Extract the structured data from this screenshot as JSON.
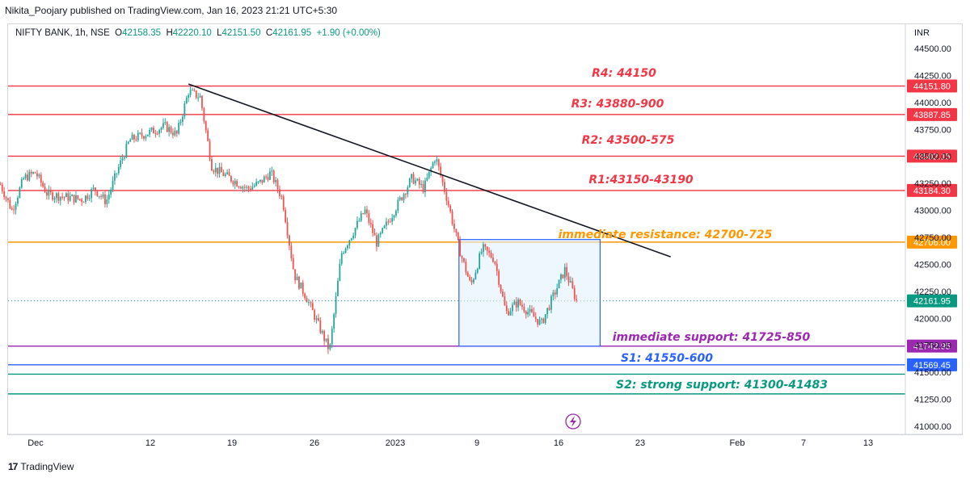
{
  "caption": "Nikita_Poojary published on TradingView.com, Jan 16, 2023 21:21 UTC+5:30",
  "symbol": {
    "name": "NIFTY BANK, 1h, NSE",
    "open_label": "O",
    "open": "42158.35",
    "high_label": "H",
    "high": "42220.10",
    "low_label": "L",
    "low": "42151.50",
    "close_label": "C",
    "close": "42161.95",
    "change": "+1.90 (+0.00%)"
  },
  "currency": "INR",
  "footer": {
    "brand": "TradingView",
    "logo_glyph": "17"
  },
  "colors": {
    "up": "#26a69a",
    "down": "#ef5350",
    "resistance": "#f23645",
    "immediate_resistance": "#ff9800",
    "immediate_support": "#9c27b0",
    "s1": "#2962ff",
    "s2": "#089981",
    "trendline": "#131722",
    "box_fill": "#e3f2fd",
    "box_border": "#2962ff",
    "current_price": "#089981"
  },
  "chart_data": {
    "type": "candlestick",
    "ylim": [
      40900,
      44700
    ],
    "y_ticks": [
      "44500.00",
      "44250.00",
      "44000.00",
      "43750.00",
      "43500.00",
      "43250.00",
      "43000.00",
      "42750.00",
      "42500.00",
      "42250.00",
      "42000.00",
      "41750.00",
      "41500.00",
      "41250.00",
      "41000.00"
    ],
    "x_ticks": [
      "Dec",
      "12",
      "19",
      "26",
      "2023",
      "9",
      "16",
      "23",
      "Feb",
      "7",
      "13"
    ],
    "levels": [
      {
        "label": "R4: 44150",
        "price": 44151.8,
        "tag": "44151.80",
        "color": "#f23645"
      },
      {
        "label": "R3: 43880-900",
        "price": 43887.85,
        "tag": "43887.85",
        "color": "#f23645"
      },
      {
        "label": "R2: 43500-575",
        "price": 43502.15,
        "tag": "43502.15",
        "color": "#f23645"
      },
      {
        "label": "R1:43150-43190",
        "price": 43184.3,
        "tag": "43184.30",
        "color": "#f23645"
      },
      {
        "label": "immediate resistance: 42700-725",
        "price": 42706.0,
        "tag": "42706.00",
        "color": "#ff9800"
      },
      {
        "label": "immediate support: 41725-850",
        "price": 41742.95,
        "tag": "41742.95",
        "color": "#9c27b0"
      },
      {
        "label": "S1: 41550-600",
        "price": 41569.45,
        "tag": "41569.45",
        "color": "#2962ff"
      },
      {
        "label": "S2: strong support: 41300-41483",
        "price": 41483,
        "tag": "",
        "color": "#089981"
      },
      {
        "label": "",
        "price": 41300,
        "tag": "",
        "color": "#089981"
      }
    ],
    "current_price": {
      "price": 42161.95,
      "tag": "42161.95"
    },
    "trendline": {
      "from": [
        "Dec 14",
        44170
      ],
      "to": [
        "Jan 24",
        42570
      ]
    },
    "consolidation_box": {
      "from": "Jan 6",
      "to": "Jan 18",
      "top": 42730,
      "bottom": 41742
    },
    "close_path": [
      [
        "Nov 28",
        43240
      ],
      [
        "Nov 29",
        43000
      ],
      [
        "Nov 30",
        43300
      ],
      [
        "Dec 1",
        43350
      ],
      [
        "Dec 2",
        43150
      ],
      [
        "Dec 5",
        43100
      ],
      [
        "Dec 6",
        43200
      ],
      [
        "Dec 7",
        43080
      ],
      [
        "Dec 8",
        43380
      ],
      [
        "Dec 9",
        43650
      ],
      [
        "Dec 12",
        43780
      ],
      [
        "Dec 13",
        43700
      ],
      [
        "Dec 14",
        44100
      ],
      [
        "Dec 15",
        44050
      ],
      [
        "Dec 16",
        43400
      ],
      [
        "Dec 19",
        43200
      ],
      [
        "Dec 20",
        43250
      ],
      [
        "Dec 21",
        43350
      ],
      [
        "Dec 22",
        43100
      ],
      [
        "Dec 23",
        42400
      ],
      [
        "Dec 24",
        42200
      ],
      [
        "Dec 26",
        41700
      ],
      [
        "Dec 27",
        42600
      ],
      [
        "Dec 28",
        42800
      ],
      [
        "Dec 29",
        43000
      ],
      [
        "Dec 30",
        42700
      ],
      [
        "Jan 2",
        43300
      ],
      [
        "Jan 3",
        43200
      ],
      [
        "Jan 4",
        43500
      ],
      [
        "Jan 5",
        43100
      ],
      [
        "Jan 6",
        42650
      ],
      [
        "Jan 7",
        42300
      ],
      [
        "Jan 8",
        42650
      ],
      [
        "Jan 9",
        42550
      ],
      [
        "Jan 10",
        42050
      ],
      [
        "Jan 11",
        42150
      ],
      [
        "Jan 12",
        42050
      ],
      [
        "Jan 13",
        41950
      ],
      [
        "Jan 14",
        42200
      ],
      [
        "Jan 15",
        42450
      ],
      [
        "Jan 16",
        42160
      ]
    ]
  },
  "icons": {
    "lightning": "lightning-icon"
  }
}
